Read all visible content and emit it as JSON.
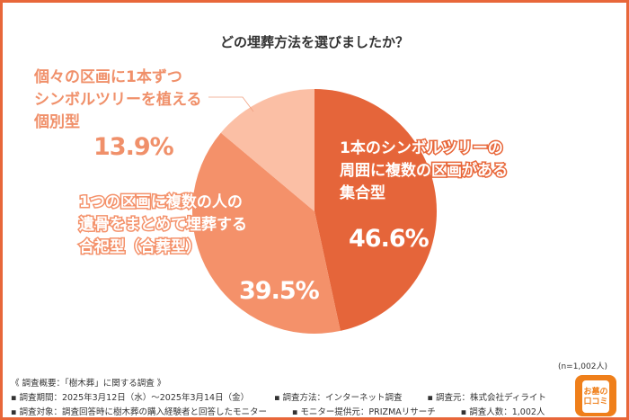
{
  "chart_data": {
    "type": "pie",
    "title": "どの埋葬方法を選びましたか？",
    "slices": [
      {
        "label_lines": [
          "1本のシンボルツリーの",
          "周囲に複数の区画がある",
          "集合型"
        ],
        "value": 46.6,
        "value_label": "46.6%",
        "color": "#e5653a"
      },
      {
        "label_lines": [
          "1つの区画に複数の人の",
          "遺骨をまとめて埋葬する",
          "合祀型（合葬型）"
        ],
        "value": 39.5,
        "value_label": "39.5%",
        "color": "#f4916a"
      },
      {
        "label_lines": [
          "個々の区画に1本ずつ",
          "シンボルツリーを植える",
          "個別型"
        ],
        "value": 13.9,
        "value_label": "13.9%",
        "color": "#fbbfa5"
      }
    ],
    "sample": "(n=1,002人)"
  },
  "footer": {
    "heading": "《 調査概要：「樹木葬」に関する調査 》",
    "row1": [
      "▪ 調査期間：2025年3月12日（水）～2025年3月14日（金）",
      "▪ 調査方法：インターネット調査",
      "▪ 調査元：株式会社ディライト"
    ],
    "row2": [
      "▪ 調査対象：調査回答時に樹木葬の購入経験者と回答したモニター",
      "▪ モニター提供元：PRIZMAリサーチ",
      "▪ 調査人数：1,002人"
    ]
  },
  "logo": {
    "line1": "お墓の",
    "line2": "口コミ"
  }
}
